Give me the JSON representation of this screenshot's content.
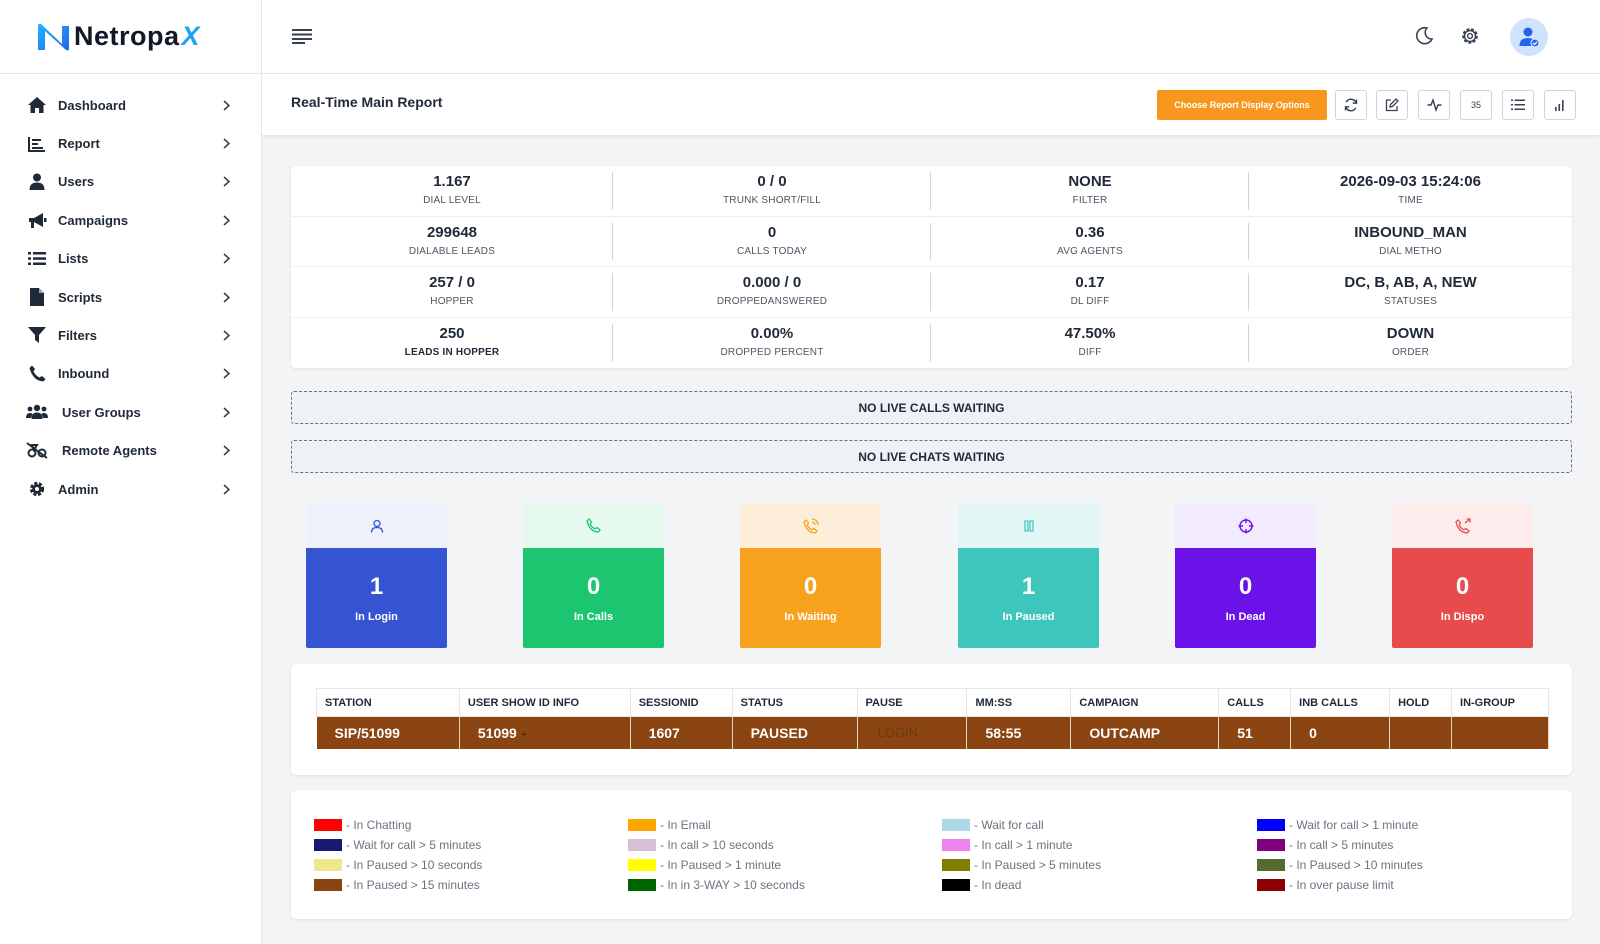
{
  "brand": {
    "name": "Netropa",
    "suffix": "X"
  },
  "sidebar": {
    "items": [
      {
        "label": "Dashboard",
        "icon": "home-icon"
      },
      {
        "label": "Report",
        "icon": "report-chart-icon"
      },
      {
        "label": "Users",
        "icon": "user-icon"
      },
      {
        "label": "Campaigns",
        "icon": "megaphone-icon"
      },
      {
        "label": "Lists",
        "icon": "list-icon"
      },
      {
        "label": "Scripts",
        "icon": "file-icon"
      },
      {
        "label": "Filters",
        "icon": "filter-icon"
      },
      {
        "label": "Inbound",
        "icon": "phone-icon"
      },
      {
        "label": "User Groups",
        "icon": "users-group-icon"
      },
      {
        "label": "Remote Agents",
        "icon": "remote-agents-icon"
      },
      {
        "label": "Admin",
        "icon": "gear-icon"
      }
    ]
  },
  "page": {
    "title": "Real-Time Main Report",
    "report_button": "Choose Report Display Options",
    "refresh_count": "35"
  },
  "stats": [
    {
      "value": "1.167",
      "label": "DIAL LEVEL"
    },
    {
      "value": "0 / 0",
      "label": "TRUNK SHORT/FILL"
    },
    {
      "value": "NONE",
      "label": "FILTER"
    },
    {
      "value": "2026-09-03 15:24:06",
      "label": "TIME"
    },
    {
      "value": "299648",
      "label": "DIALABLE LEADS"
    },
    {
      "value": "0",
      "label": "CALLS TODAY"
    },
    {
      "value": "0.36",
      "label": "AVG AGENTS"
    },
    {
      "value": "INBOUND_MAN",
      "label": "DIAL METHO"
    },
    {
      "value": "257 / 0",
      "label": "HOPPER"
    },
    {
      "value": "0.000 / 0",
      "label": "DROPPEDANSWERED"
    },
    {
      "value": "0.17",
      "label": "DL DIFF"
    },
    {
      "value": "DC, B, AB, A, NEW",
      "label": "STATUSES"
    },
    {
      "value": "250",
      "label": "LEADS IN HOPPER"
    },
    {
      "value": "0.00%",
      "label": "DROPPED PERCENT"
    },
    {
      "value": "47.50%",
      "label": "DIFF"
    },
    {
      "value": "DOWN",
      "label": "ORDER"
    }
  ],
  "banners": {
    "calls": "NO LIVE CALLS WAITING",
    "chats": "NO LIVE CHATS WAITING"
  },
  "tiles": [
    {
      "value": "1",
      "label": "In Login",
      "color": "#3554d1",
      "light": "#eef0fb",
      "icon": "user-outline-icon"
    },
    {
      "value": "0",
      "label": "In Calls",
      "color": "#1cc56f",
      "light": "#e6f9ef",
      "icon": "phone-outline-icon"
    },
    {
      "value": "0",
      "label": "In Waiting",
      "color": "#f7a21f",
      "light": "#fdeeda",
      "icon": "phone-ringing-icon"
    },
    {
      "value": "1",
      "label": "In Paused",
      "color": "#3ec6bc",
      "light": "#e2f7f5",
      "icon": "pause-icon"
    },
    {
      "value": "0",
      "label": "In Dead",
      "color": "#6b12e8",
      "light": "#f1ebfd",
      "icon": "crosshair-icon"
    },
    {
      "value": "0",
      "label": "In Dispo",
      "color": "#e84b4b",
      "light": "#fdecec",
      "icon": "phone-forward-icon"
    }
  ],
  "agent_table": {
    "headers": [
      "STATION",
      "USER SHOW ID INFO",
      "SESSIONID",
      "STATUS",
      "PAUSE",
      "MM:SS",
      "CAMPAIGN",
      "CALLS",
      "INB CALLS",
      "HOLD",
      "IN-GROUP"
    ],
    "row": {
      "station": "SIP/51099",
      "user": "51099",
      "user_suffix": "+",
      "session": "1607",
      "status": "PAUSED",
      "pause": "LOGIN",
      "mmss": "58:55",
      "campaign": "OUTCAMP",
      "calls": "51",
      "inb_calls": "0",
      "hold": "",
      "in_group": ""
    },
    "row_color": "#8b4513"
  },
  "legend": [
    [
      {
        "color": "#ff0000",
        "label": "- In Chatting"
      },
      {
        "color": "#191970",
        "label": "- Wait for call > 5 minutes"
      },
      {
        "color": "#f0e68c",
        "label": "- In Paused > 10 seconds"
      },
      {
        "color": "#8b4513",
        "label": "- In Paused > 15 minutes"
      }
    ],
    [
      {
        "color": "#ffa500",
        "label": "- In Email"
      },
      {
        "color": "#d8bfd8",
        "label": "- In call > 10 seconds"
      },
      {
        "color": "#ffff00",
        "label": "- In Paused > 1 minute"
      },
      {
        "color": "#006400",
        "label": "- In in 3-WAY > 10 seconds"
      }
    ],
    [
      {
        "color": "#add8e6",
        "label": "- Wait for call"
      },
      {
        "color": "#ee82ee",
        "label": "- In call > 1 minute"
      },
      {
        "color": "#808000",
        "label": "- In Paused > 5 minutes"
      },
      {
        "color": "#000000",
        "label": "- In dead"
      }
    ],
    [
      {
        "color": "#0000ff",
        "label": "- Wait for call > 1 minute"
      },
      {
        "color": "#800080",
        "label": "- In call > 5 minutes"
      },
      {
        "color": "#556b2f",
        "label": "- In Paused > 10 minutes"
      },
      {
        "color": "#8b0000",
        "label": "- In over pause limit"
      }
    ]
  ]
}
